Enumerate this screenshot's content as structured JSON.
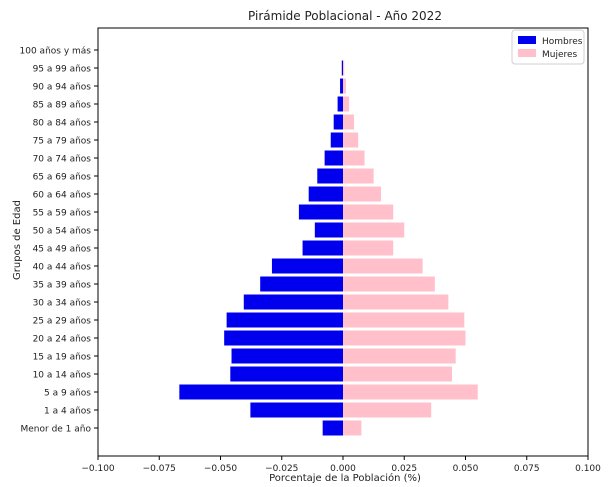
{
  "chart_data": {
    "type": "bar",
    "orientation": "horizontal",
    "title": "Pirámide Poblacional - Año 2022",
    "xlabel": "Porcentaje de la Población (%)",
    "ylabel": "Grupos de Edad",
    "xlim": [
      -0.1,
      0.1
    ],
    "xticks": [
      "−0.100",
      "−0.075",
      "−0.050",
      "−0.025",
      "0.000",
      "0.025",
      "0.050",
      "0.075",
      "0.100"
    ],
    "xtick_values": [
      -0.1,
      -0.075,
      -0.05,
      -0.025,
      0,
      0.025,
      0.05,
      0.075,
      0.1
    ],
    "grid": false,
    "legend_position": "top-right",
    "categories": [
      "Menor de 1 año",
      "1 a 4 años",
      "5 a 9 años",
      "10 a 14 años",
      "15 a 19 años",
      "20 a 24 años",
      "25 a 29 años",
      "30 a 34 años",
      "35 a 39 años",
      "40 a 44 años",
      "45 a 49 años",
      "50 a 54 años",
      "55 a 59 años",
      "60 a 64 años",
      "65 a 69 años",
      "70 a 74 años",
      "75 a 79 años",
      "80 a 84 años",
      "85 a 89 años",
      "90 a 94 años",
      "95 a 99 años",
      "100 años y más"
    ],
    "series": [
      {
        "name": "Hombres",
        "color": "#0000ee",
        "values": [
          -0.0083,
          -0.0378,
          -0.0668,
          -0.046,
          -0.0455,
          -0.0485,
          -0.0475,
          -0.0405,
          -0.0338,
          -0.029,
          -0.0165,
          -0.0115,
          -0.018,
          -0.014,
          -0.0105,
          -0.0075,
          -0.005,
          -0.0038,
          -0.0022,
          -0.0012,
          -0.0005,
          0
        ]
      },
      {
        "name": "Mujeres",
        "color": "#ffc0cb",
        "values": [
          0.0075,
          0.036,
          0.055,
          0.0445,
          0.046,
          0.05,
          0.0495,
          0.043,
          0.0375,
          0.0325,
          0.0205,
          0.025,
          0.0205,
          0.0155,
          0.0125,
          0.0088,
          0.0062,
          0.0045,
          0.0025,
          0.0012,
          0.0005,
          0
        ]
      }
    ]
  }
}
